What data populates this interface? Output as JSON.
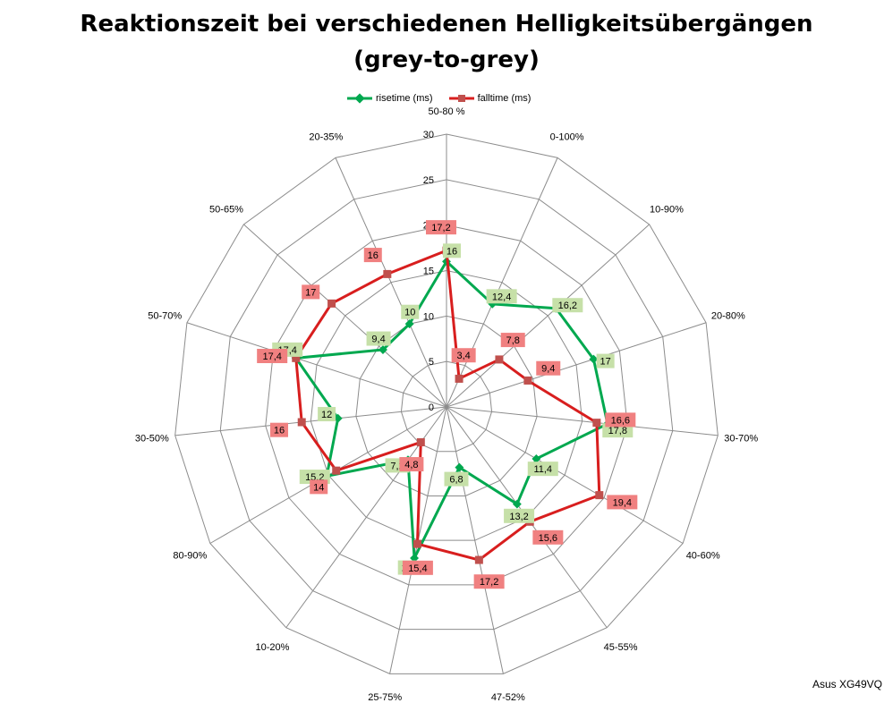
{
  "chart_data": {
    "type": "radar",
    "title_line1": "Reaktionszeit bei verschiedenen Helligkeitsübergängen",
    "title_line2": "(grey-to-grey)",
    "categories": [
      "50-80 %",
      "0-100%",
      "10-90%",
      "20-80%",
      "30-70%",
      "40-60%",
      "45-55%",
      "47-52%",
      "25-75%",
      "10-20%",
      "80-90%",
      "30-50%",
      "50-70%",
      "50-65%",
      "20-35%"
    ],
    "radial_ticks": [
      "0",
      "5",
      "10",
      "15",
      "20",
      "25",
      "30"
    ],
    "rmax": 30,
    "series": [
      {
        "name": "risetime (ms)",
        "color": "#00a84f",
        "label_bg": "#c6e0a8",
        "values": [
          16,
          12.4,
          16.2,
          17,
          17.8,
          11.4,
          13.2,
          6.8,
          17,
          7.2,
          15.2,
          12,
          17.4,
          9.4,
          10
        ],
        "labels": [
          "16",
          "12,4",
          "16,2",
          "17",
          "17,8",
          "11,4",
          "13,2",
          "6,8",
          "17",
          "7,2",
          "15,2",
          "12",
          "17,4",
          "9,4",
          "10"
        ]
      },
      {
        "name": "falltime (ms)",
        "color": "#d81e1e",
        "label_bg": "#f08080",
        "values": [
          17.2,
          3.4,
          7.8,
          9.4,
          16.6,
          19.4,
          15.6,
          17.2,
          15.4,
          4.8,
          14,
          16,
          17.4,
          17,
          16
        ],
        "labels": [
          "17,2",
          "3,4",
          "7,8",
          "9,4",
          "16,6",
          "19,4",
          "15,6",
          "17,2",
          "15,4",
          "4,8",
          "14",
          "16",
          "17,4",
          "17",
          "16"
        ]
      }
    ],
    "legend_position": "top",
    "grid": true
  },
  "credit": "Asus XG49VQ"
}
